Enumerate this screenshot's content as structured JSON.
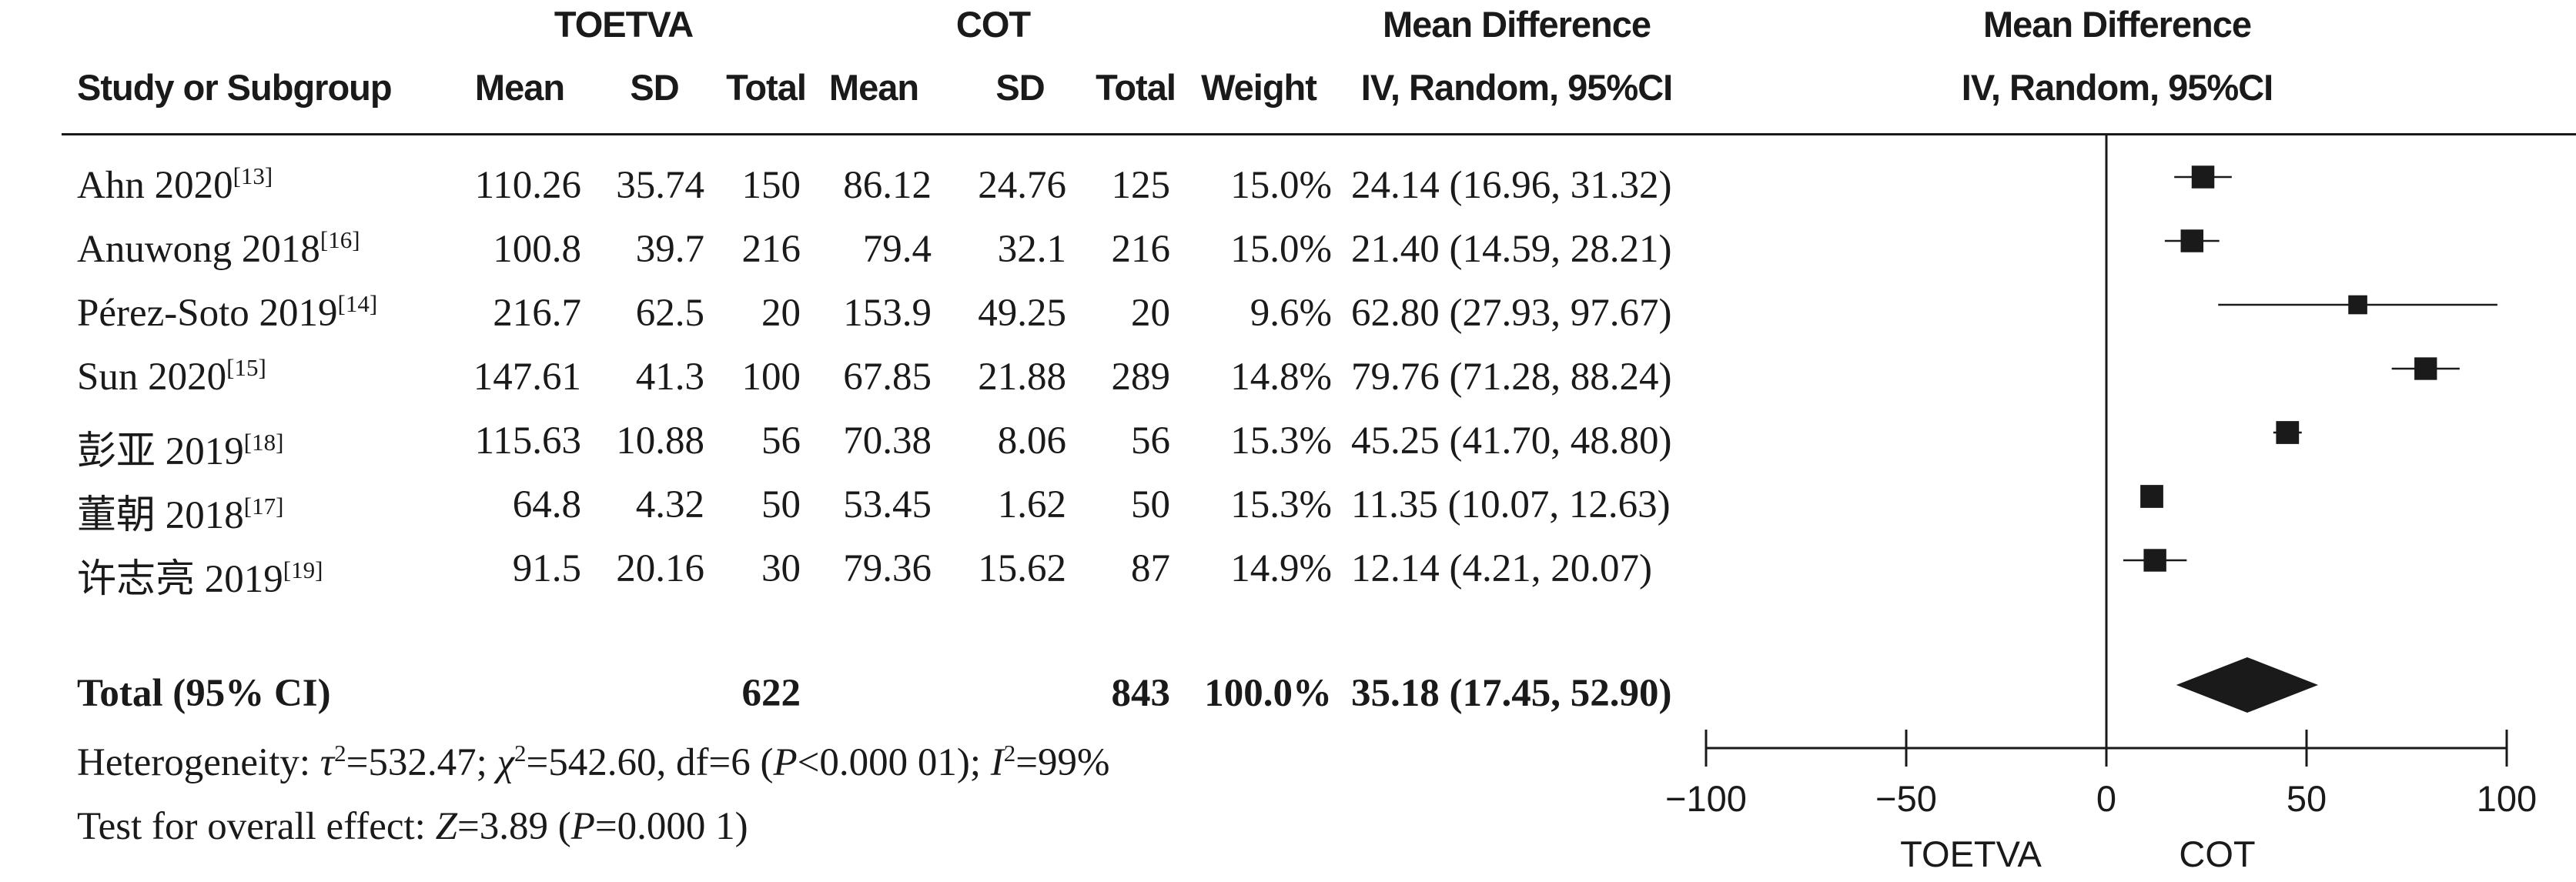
{
  "headers": {
    "group1": "TOETVA",
    "group2": "COT",
    "md_title": "Mean Difference",
    "md_method": "IV, Random, 95%CI",
    "plot_title": "Mean Difference",
    "plot_method": "IV, Random, 95%CI",
    "study": "Study or Subgroup",
    "mean1": "Mean",
    "sd1": "SD",
    "total1": "Total",
    "mean2": "Mean",
    "sd2": "SD",
    "total2": "Total",
    "weight": "Weight"
  },
  "studies": [
    {
      "name": "Ahn 2020",
      "ref": "[13]",
      "mean1": "110.26",
      "sd1": "35.74",
      "n1": "150",
      "mean2": "86.12",
      "sd2": "24.76",
      "n2": "125",
      "weight": "15.0%",
      "ci_text": "24.14 (16.96, 31.32)"
    },
    {
      "name": "Anuwong 2018",
      "ref": "[16]",
      "mean1": "100.8",
      "sd1": "39.7",
      "n1": "216",
      "mean2": "79.4",
      "sd2": "32.1",
      "n2": "216",
      "weight": "15.0%",
      "ci_text": "21.40 (14.59, 28.21)"
    },
    {
      "name": "Pérez-Soto 2019",
      "ref": "[14]",
      "mean1": "216.7",
      "sd1": "62.5",
      "n1": "20",
      "mean2": "153.9",
      "sd2": "49.25",
      "n2": "20",
      "weight": "9.6%",
      "ci_text": "62.80 (27.93, 97.67)"
    },
    {
      "name": "Sun 2020",
      "ref": "[15]",
      "mean1": "147.61",
      "sd1": "41.3",
      "n1": "100",
      "mean2": "67.85",
      "sd2": "21.88",
      "n2": "289",
      "weight": "14.8%",
      "ci_text": "79.76 (71.28, 88.24)"
    },
    {
      "name": "彭亚 2019",
      "ref": "[18]",
      "mean1": "115.63",
      "sd1": "10.88",
      "n1": "56",
      "mean2": "70.38",
      "sd2": "8.06",
      "n2": "56",
      "weight": "15.3%",
      "ci_text": "45.25 (41.70, 48.80)"
    },
    {
      "name": "董朝 2018",
      "ref": "[17]",
      "mean1": "64.8",
      "sd1": "4.32",
      "n1": "50",
      "mean2": "53.45",
      "sd2": "1.62",
      "n2": "50",
      "weight": "15.3%",
      "ci_text": "11.35 (10.07, 12.63)"
    },
    {
      "name": "许志亮 2019",
      "ref": "[19]",
      "mean1": "91.5",
      "sd1": "20.16",
      "n1": "30",
      "mean2": "79.36",
      "sd2": "15.62",
      "n2": "87",
      "weight": "14.9%",
      "ci_text": "12.14 (4.21, 20.07)"
    }
  ],
  "total": {
    "label": "Total (95% CI)",
    "n1": "622",
    "n2": "843",
    "weight": "100.0%",
    "ci_text": "35.18 (17.45, 52.90)"
  },
  "heterogeneity": {
    "prefix": "Heterogeneity: ",
    "tau_sym": "τ",
    "tau_val": "=532.47; ",
    "chi_sym": "χ",
    "chi_val": "=542.60, df=6 (",
    "p_sym": "P",
    "p_val": "<0.000 01); ",
    "i_sym": "I",
    "i_val": "=99%"
  },
  "overall": {
    "prefix": "Test for overall effect: ",
    "z_sym": "Z",
    "z_val": "=3.89 (",
    "p_sym": "P",
    "p_val": "=0.000 1)"
  },
  "axis_labels": {
    "left": "TOETVA",
    "right": "COT"
  },
  "chart_data": {
    "type": "forest",
    "x_range": [
      -100,
      100
    ],
    "x_ticks": [
      -100,
      -50,
      0,
      50,
      100
    ],
    "null_line": 0,
    "studies": [
      {
        "name": "Ahn 2020",
        "md": 24.14,
        "lo": 16.96,
        "hi": 31.32,
        "weight": 15.0
      },
      {
        "name": "Anuwong 2018",
        "md": 21.4,
        "lo": 14.59,
        "hi": 28.21,
        "weight": 15.0
      },
      {
        "name": "Pérez-Soto 2019",
        "md": 62.8,
        "lo": 27.93,
        "hi": 97.67,
        "weight": 9.6
      },
      {
        "name": "Sun 2020",
        "md": 79.76,
        "lo": 71.28,
        "hi": 88.24,
        "weight": 14.8
      },
      {
        "name": "彭亚 2019",
        "md": 45.25,
        "lo": 41.7,
        "hi": 48.8,
        "weight": 15.3
      },
      {
        "name": "董朝 2018",
        "md": 11.35,
        "lo": 10.07,
        "hi": 12.63,
        "weight": 15.3
      },
      {
        "name": "许志亮 2019",
        "md": 12.14,
        "lo": 4.21,
        "hi": 20.07,
        "weight": 14.9
      }
    ],
    "pooled": {
      "md": 35.18,
      "lo": 17.45,
      "hi": 52.9
    }
  }
}
